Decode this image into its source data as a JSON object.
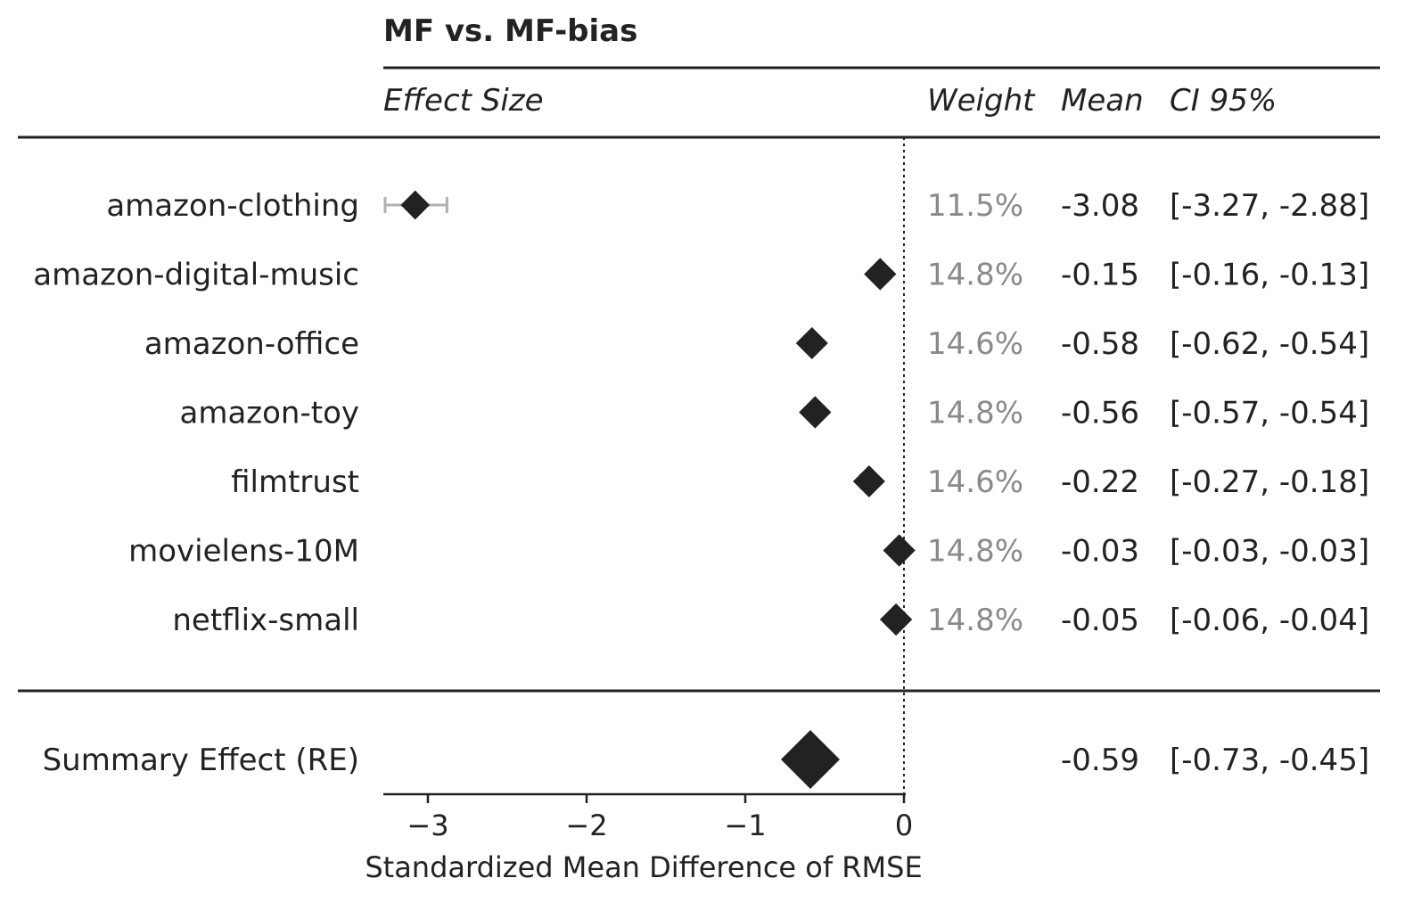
{
  "chart_data": {
    "type": "forest",
    "title": "MF vs. MF-bias",
    "headers": {
      "effect": "Effect Size",
      "weight": "Weight",
      "mean": "Mean",
      "ci": "CI 95%"
    },
    "xlabel": "Standardized Mean Difference of RMSE",
    "xlim": [
      -3.28,
      0
    ],
    "xticks": [
      -3,
      -2,
      -1,
      0
    ],
    "xtick_labels": [
      "−3",
      "−2",
      "−1",
      "0"
    ],
    "reference_line": 0,
    "rows": [
      {
        "label": "amazon-clothing",
        "weight": "11.5%",
        "weight_value": 11.5,
        "mean": -3.08,
        "mean_label": "-3.08",
        "ci": [
          -3.27,
          -2.88
        ],
        "ci_label": "[-3.27, -2.88]"
      },
      {
        "label": "amazon-digital-music",
        "weight": "14.8%",
        "weight_value": 14.8,
        "mean": -0.15,
        "mean_label": "-0.15",
        "ci": [
          -0.16,
          -0.13
        ],
        "ci_label": "[-0.16, -0.13]"
      },
      {
        "label": "amazon-office",
        "weight": "14.6%",
        "weight_value": 14.6,
        "mean": -0.58,
        "mean_label": "-0.58",
        "ci": [
          -0.62,
          -0.54
        ],
        "ci_label": "[-0.62, -0.54]"
      },
      {
        "label": "amazon-toy",
        "weight": "14.8%",
        "weight_value": 14.8,
        "mean": -0.56,
        "mean_label": "-0.56",
        "ci": [
          -0.57,
          -0.54
        ],
        "ci_label": "[-0.57, -0.54]"
      },
      {
        "label": "filmtrust",
        "weight": "14.6%",
        "weight_value": 14.6,
        "mean": -0.22,
        "mean_label": "-0.22",
        "ci": [
          -0.27,
          -0.18
        ],
        "ci_label": "[-0.27, -0.18]"
      },
      {
        "label": "movielens-10M",
        "weight": "14.8%",
        "weight_value": 14.8,
        "mean": -0.03,
        "mean_label": "-0.03",
        "ci": [
          -0.03,
          -0.03
        ],
        "ci_label": "[-0.03, -0.03]"
      },
      {
        "label": "netflix-small",
        "weight": "14.8%",
        "weight_value": 14.8,
        "mean": -0.05,
        "mean_label": "-0.05",
        "ci": [
          -0.06,
          -0.04
        ],
        "ci_label": "[-0.06, -0.04]"
      }
    ],
    "summary": {
      "label": "Summary Effect (RE)",
      "mean": -0.59,
      "mean_label": "-0.59",
      "ci": [
        -0.73,
        -0.45
      ],
      "ci_label": "[-0.73, -0.45]"
    },
    "colors": {
      "marker": "#222222",
      "ci_whisker": "#b0b0b0",
      "weight_text": "#8a8a8a",
      "text": "#222222"
    }
  }
}
